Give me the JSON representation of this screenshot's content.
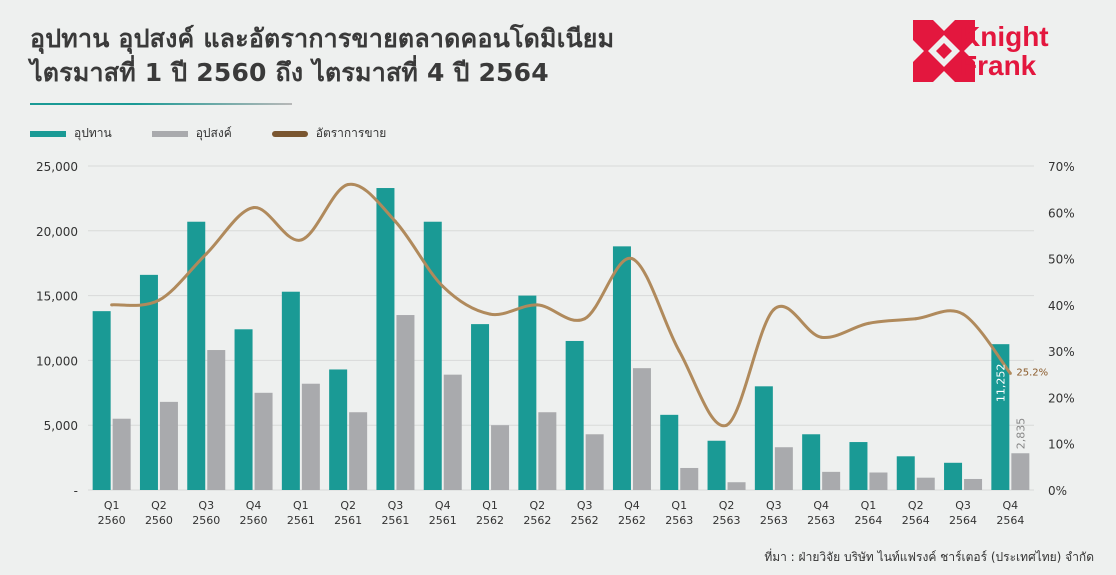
{
  "title": {
    "line1": "อุปทาน อุปสงค์ และอัตราการขายตลาดคอนโดมิเนียม",
    "line2": "ไตรมาสที่ 1 ปี 2560 ถึง ไตรมาสที่ 4 ปี 2564"
  },
  "logo": {
    "line1": "Knight",
    "line2": "Frank"
  },
  "legend": {
    "supply": "อุปทาน",
    "demand": "อุปสงค์",
    "sales_rate": "อัตราการขาย"
  },
  "colors": {
    "supply": "#1a9a95",
    "demand": "#a9aaad",
    "sales_rate": "#b08a5c",
    "brand": "#e3173e"
  },
  "source": "ที่มา : ฝ่ายวิจัย บริษัท ไนท์แฟรงค์ ชาร์เตอร์ (ประเทศไทย) จำกัด",
  "chart_data": {
    "type": "bar+line",
    "title": "อุปทาน อุปสงค์ และอัตราการขายตลาดคอนโดมิเนียม",
    "categories": [
      [
        "Q1",
        "2560"
      ],
      [
        "Q2",
        "2560"
      ],
      [
        "Q3",
        "2560"
      ],
      [
        "Q4",
        "2560"
      ],
      [
        "Q1",
        "2561"
      ],
      [
        "Q2",
        "2561"
      ],
      [
        "Q3",
        "2561"
      ],
      [
        "Q4",
        "2561"
      ],
      [
        "Q1",
        "2562"
      ],
      [
        "Q2",
        "2562"
      ],
      [
        "Q3",
        "2562"
      ],
      [
        "Q4",
        "2562"
      ],
      [
        "Q1",
        "2563"
      ],
      [
        "Q2",
        "2563"
      ],
      [
        "Q3",
        "2563"
      ],
      [
        "Q4",
        "2563"
      ],
      [
        "Q1",
        "2564"
      ],
      [
        "Q2",
        "2564"
      ],
      [
        "Q3",
        "2564"
      ],
      [
        "Q4",
        "2564"
      ]
    ],
    "series": [
      {
        "name": "อุปทาน",
        "type": "bar",
        "axis": "left",
        "values": [
          13800,
          16600,
          20700,
          12400,
          15300,
          9300,
          23300,
          20700,
          12800,
          15000,
          11500,
          18800,
          5800,
          3800,
          8000,
          4300,
          3700,
          2600,
          2100,
          11252
        ]
      },
      {
        "name": "อุปสงค์",
        "type": "bar",
        "axis": "left",
        "values": [
          5500,
          6800,
          10800,
          7500,
          8200,
          6000,
          13500,
          8900,
          5000,
          6000,
          4300,
          9400,
          1700,
          600,
          3300,
          1400,
          1350,
          950,
          850,
          2835
        ]
      },
      {
        "name": "อัตราการขาย",
        "type": "line",
        "axis": "right",
        "values": [
          40,
          41,
          51,
          61,
          54,
          66,
          58,
          44,
          38,
          40,
          37,
          50,
          30,
          14,
          39,
          33,
          36,
          37,
          38,
          25.2
        ]
      }
    ],
    "left_axis": {
      "min": 0,
      "max": 25000,
      "ticks": [
        "-",
        "5,000",
        "10,000",
        "15,000",
        "20,000",
        "25,000"
      ]
    },
    "right_axis": {
      "min": 0,
      "max": 70,
      "ticks": [
        "0%",
        "10%",
        "20%",
        "30%",
        "40%",
        "50%",
        "60%",
        "70%"
      ]
    },
    "data_labels": {
      "supply_last": "11,252",
      "demand_last": "2,835",
      "rate_last": "25.2%"
    }
  }
}
